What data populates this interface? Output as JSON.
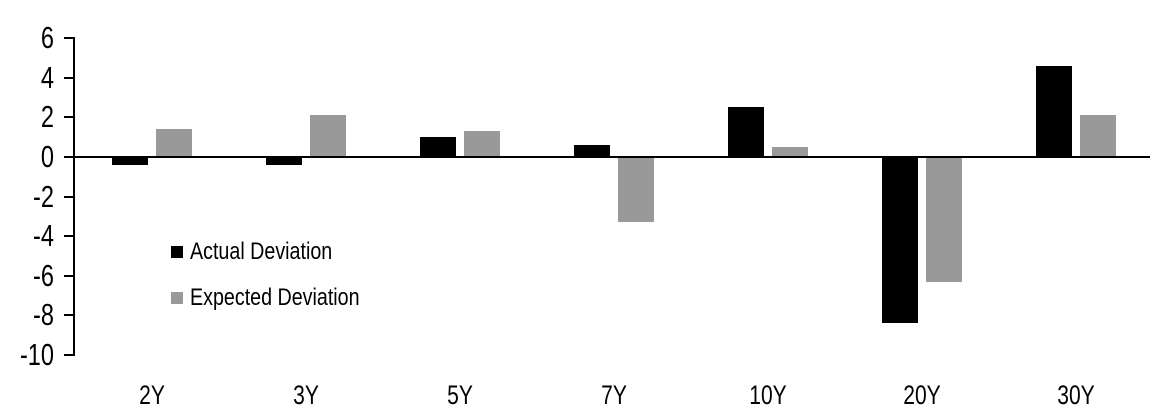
{
  "chart_data": {
    "type": "bar",
    "title": "",
    "xlabel": "",
    "ylabel": "",
    "categories": [
      "2Y",
      "3Y",
      "5Y",
      "7Y",
      "10Y",
      "20Y",
      "30Y"
    ],
    "series": [
      {
        "name": "Actual Deviation",
        "color": "#000000",
        "values": [
          -0.4,
          -0.4,
          1.0,
          0.6,
          2.5,
          -8.4,
          4.6
        ]
      },
      {
        "name": "Expected Deviation",
        "color": "#999999",
        "values": [
          1.4,
          2.1,
          1.3,
          -3.3,
          0.5,
          -6.3,
          2.1
        ]
      }
    ],
    "ylim": [
      -10,
      6
    ],
    "ytick_step": 2,
    "yticks": [
      6,
      4,
      2,
      0,
      -2,
      -4,
      -6,
      -8,
      -10
    ],
    "grid": false,
    "legend_position": "inside-left",
    "axis_color": "#000000",
    "background_color": "#ffffff"
  }
}
